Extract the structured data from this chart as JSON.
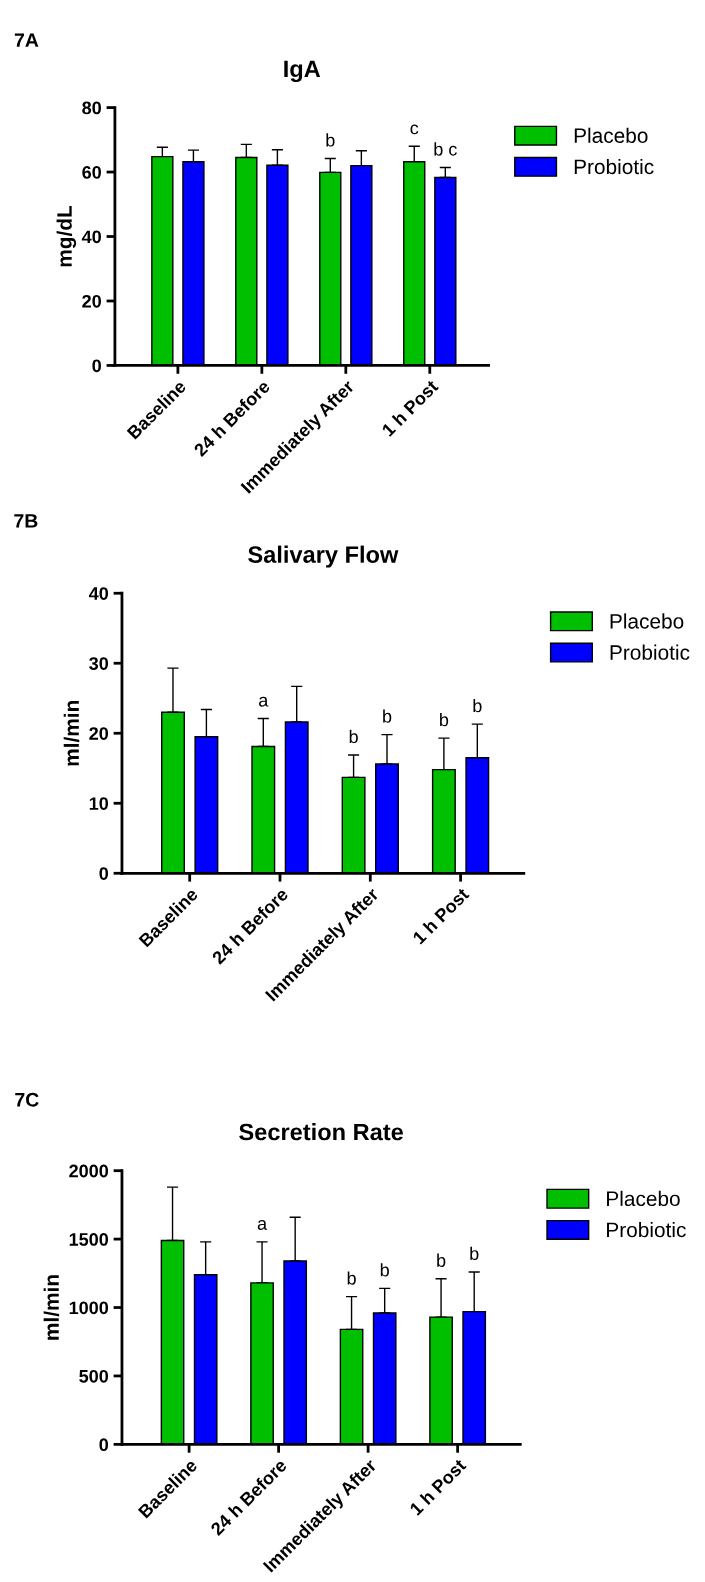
{
  "chart_data": [
    {
      "type": "bar",
      "title": "IgA",
      "ylabel": "mg/dL",
      "annotations": [
        "7A"
      ],
      "categories": [
        "Baseline",
        "24 h Before",
        "Immediately After",
        "1 h Post"
      ],
      "ylim": [
        0,
        80
      ],
      "yticks": [
        0,
        20,
        40,
        60,
        80
      ],
      "grid": false,
      "legend": "top right",
      "series": [
        {
          "name": "Placebo",
          "color": "#00bf00",
          "values": [
            64.8,
            64.5,
            59.9,
            63.2
          ],
          "errors": [
            2.9,
            4.1,
            4.3,
            4.8
          ],
          "value_labels": [
            null,
            null,
            "b",
            "c"
          ]
        },
        {
          "name": "Probiotic",
          "color": "#0000ff",
          "values": [
            63.2,
            62.1,
            62.0,
            58.3
          ],
          "errors": [
            3.6,
            4.8,
            4.6,
            3.1
          ],
          "value_labels": [
            null,
            null,
            null,
            "b c"
          ]
        }
      ]
    },
    {
      "type": "bar",
      "title": "Salivary Flow",
      "ylabel": "ml/min",
      "annotations": [
        "7B"
      ],
      "categories": [
        "Baseline",
        "24 h Before",
        "Immediately After",
        "1 h Post"
      ],
      "ylim": [
        0,
        40
      ],
      "yticks": [
        0,
        10,
        20,
        30,
        40
      ],
      "grid": false,
      "legend": "top right",
      "series": [
        {
          "name": "Placebo",
          "color": "#00bf00",
          "values": [
            23.0,
            18.1,
            13.7,
            14.8
          ],
          "errors": [
            6.3,
            4.0,
            3.2,
            4.5
          ],
          "value_labels": [
            null,
            "a",
            "b",
            "b"
          ]
        },
        {
          "name": "Probiotic",
          "color": "#0000ff",
          "values": [
            19.5,
            21.6,
            15.6,
            16.5
          ],
          "errors": [
            3.9,
            5.1,
            4.2,
            4.8
          ],
          "value_labels": [
            null,
            null,
            "b",
            "b"
          ]
        }
      ]
    },
    {
      "type": "bar",
      "title": "Secretion Rate",
      "ylabel": "ml/min",
      "annotations": [
        "7C"
      ],
      "categories": [
        "Baseline",
        "24 h Before",
        "Immediately After",
        "1 h Post"
      ],
      "ylim": [
        0,
        2000
      ],
      "yticks": [
        0,
        500,
        1000,
        1500,
        2000
      ],
      "grid": false,
      "legend": "top right",
      "series": [
        {
          "name": "Placebo",
          "color": "#00bf00",
          "values": [
            1490,
            1180,
            840,
            930
          ],
          "errors": [
            390,
            300,
            240,
            280
          ],
          "value_labels": [
            null,
            "a",
            "b",
            "b"
          ]
        },
        {
          "name": "Probiotic",
          "color": "#0000ff",
          "values": [
            1240,
            1340,
            960,
            970
          ],
          "errors": [
            240,
            320,
            180,
            290
          ],
          "value_labels": [
            null,
            null,
            "b",
            "b"
          ]
        }
      ]
    }
  ]
}
